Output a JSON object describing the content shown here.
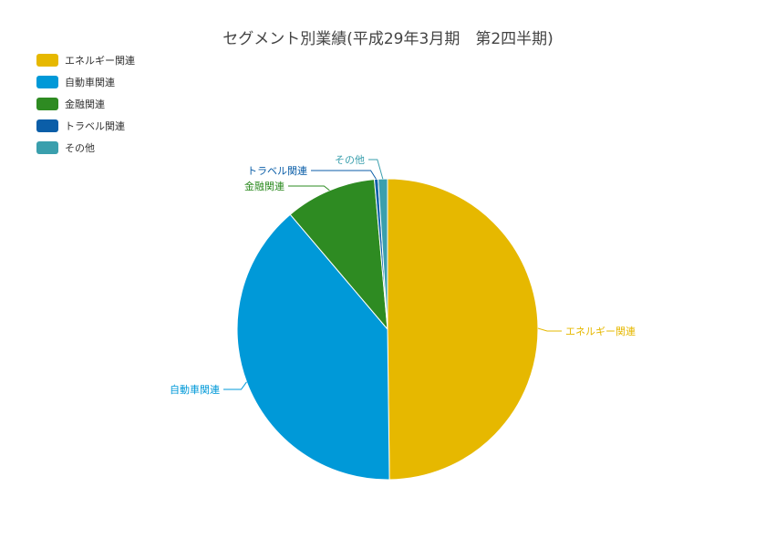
{
  "chart_data": {
    "type": "pie",
    "title": "セグメント別業績(平成29年3月期　第2四半期)",
    "slices": [
      {
        "label": "エネルギー関連",
        "value": 49.8,
        "color": "#E6B800"
      },
      {
        "label": "自動車関連",
        "value": 39.0,
        "color": "#0099D8"
      },
      {
        "label": "金融関連",
        "value": 9.8,
        "color": "#2E8B22"
      },
      {
        "label": "トラベル関連",
        "value": 0.4,
        "color": "#0B5EA8"
      },
      {
        "label": "その他",
        "value": 1.0,
        "color": "#3A9FAD"
      }
    ],
    "legend_position": "top-left"
  }
}
